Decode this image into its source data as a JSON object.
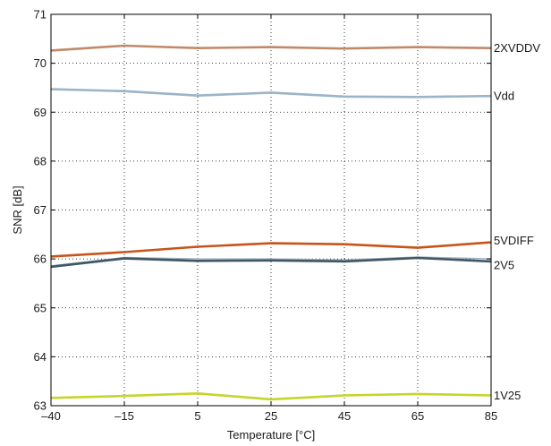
{
  "chart_data": {
    "type": "line",
    "title": "",
    "xlabel": "Temperature [°C]",
    "ylabel": "SNR [dB]",
    "x": [
      -40,
      -15,
      5,
      25,
      45,
      65,
      85
    ],
    "x_tick_labels": [
      "–40",
      "–15",
      "5",
      "25",
      "45",
      "65",
      "85"
    ],
    "y_ticks": [
      63,
      64,
      65,
      66,
      67,
      68,
      69,
      70,
      71
    ],
    "ylim": [
      63,
      71
    ],
    "grid": true,
    "series": [
      {
        "name": "2XVDDV",
        "color": "#c08a6a",
        "values": [
          70.26,
          70.36,
          70.31,
          70.33,
          70.3,
          70.33,
          70.31
        ]
      },
      {
        "name": "Vdd",
        "color": "#9ab4c8",
        "values": [
          69.47,
          69.43,
          69.34,
          69.4,
          69.32,
          69.31,
          69.33
        ]
      },
      {
        "name": "",
        "color": "#a0b0bc",
        "values": [
          65.86,
          66.03,
          66.0,
          66.0,
          65.98,
          66.04,
          66.0
        ]
      },
      {
        "name": "5VDIFF",
        "color": "#c8541a",
        "values": [
          66.05,
          66.14,
          66.25,
          66.32,
          66.3,
          66.23,
          66.34
        ]
      },
      {
        "name": "2V5",
        "color": "#3f5868",
        "values": [
          65.84,
          66.01,
          65.96,
          65.97,
          65.95,
          66.02,
          65.95
        ]
      },
      {
        "name": "1V25",
        "color": "#c5d52a",
        "values": [
          63.16,
          63.2,
          63.25,
          63.13,
          63.21,
          63.24,
          63.21
        ]
      }
    ]
  }
}
